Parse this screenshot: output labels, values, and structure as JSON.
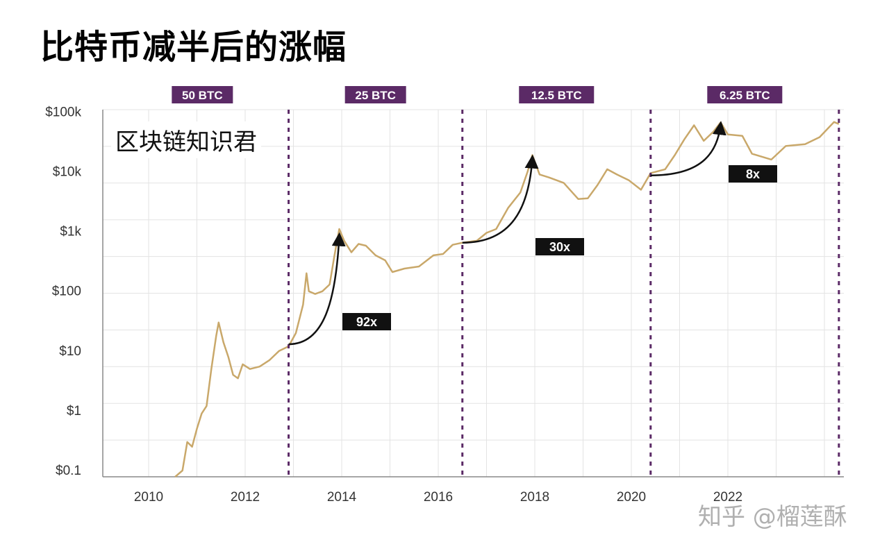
{
  "title": "比特币减半后的涨幅",
  "brand_label": "区块链知识君",
  "watermark": "知乎 @榴莲酥",
  "chart_data": {
    "type": "line",
    "title": "比特币减半后的涨幅",
    "y_scale": "log",
    "ylim": [
      0.05,
      100000
    ],
    "xlim": [
      2009.0,
      2024.4
    ],
    "y_ticks": [
      {
        "value": 100000,
        "label": "$100k"
      },
      {
        "value": 10000,
        "label": "$10k"
      },
      {
        "value": 1000,
        "label": "$1k"
      },
      {
        "value": 100,
        "label": "$100"
      },
      {
        "value": 10,
        "label": "$10"
      },
      {
        "value": 1,
        "label": "$1"
      },
      {
        "value": 0.1,
        "label": "$0.1"
      }
    ],
    "x_ticks": [
      2010,
      2012,
      2014,
      2016,
      2018,
      2020,
      2022
    ],
    "grid": true,
    "line_color": "#c9a86a",
    "halving_color": "#5b2a66",
    "halvings": [
      {
        "x": 2012.9,
        "reward_label": "50 BTC"
      },
      {
        "x": 2016.5,
        "reward_label": "25 BTC"
      },
      {
        "x": 2020.4,
        "reward_label": "12.5 BTC"
      },
      {
        "x": 2024.3,
        "reward_label": "6.25 BTC"
      }
    ],
    "annotations": [
      {
        "label": "92x",
        "from": [
          2012.9,
          13
        ],
        "to": [
          2013.95,
          850
        ]
      },
      {
        "label": "30x",
        "from": [
          2016.5,
          650
        ],
        "to": [
          2017.95,
          17000
        ]
      },
      {
        "label": "8x",
        "from": [
          2020.4,
          8700
        ],
        "to": [
          2021.85,
          62000
        ]
      }
    ],
    "series": [
      {
        "x": [
          2010.55,
          2010.7,
          2010.8,
          2010.9,
          2011.0,
          2011.1,
          2011.2,
          2011.3,
          2011.4,
          2011.45,
          2011.55,
          2011.65,
          2011.75,
          2011.85,
          2011.95,
          2012.1,
          2012.3,
          2012.5,
          2012.7,
          2012.9,
          2013.05,
          2013.2,
          2013.27,
          2013.32,
          2013.45,
          2013.6,
          2013.75,
          2013.85,
          2013.95,
          2014.05,
          2014.2,
          2014.35,
          2014.5,
          2014.7,
          2014.9,
          2015.05,
          2015.3,
          2015.6,
          2015.9,
          2016.1,
          2016.3,
          2016.5,
          2016.8,
          2017.0,
          2017.2,
          2017.45,
          2017.7,
          2017.85,
          2017.95,
          2018.1,
          2018.3,
          2018.6,
          2018.9,
          2019.1,
          2019.3,
          2019.5,
          2019.7,
          2019.95,
          2020.2,
          2020.4,
          2020.7,
          2020.9,
          2021.1,
          2021.3,
          2021.5,
          2021.7,
          2021.85,
          2022.0,
          2022.3,
          2022.5,
          2022.9,
          2023.2,
          2023.6,
          2023.9,
          2024.2,
          2024.3
        ],
        "y": [
          0.06,
          0.1,
          0.3,
          0.25,
          0.5,
          0.9,
          1.2,
          5,
          18,
          30,
          14,
          8,
          4,
          3.5,
          6,
          5,
          5.5,
          7,
          10,
          12,
          20,
          60,
          200,
          100,
          90,
          100,
          130,
          400,
          1100,
          700,
          450,
          620,
          580,
          400,
          330,
          210,
          240,
          260,
          400,
          420,
          600,
          650,
          700,
          950,
          1100,
          2500,
          4500,
          10000,
          19000,
          9000,
          8000,
          6500,
          3500,
          3600,
          6000,
          11000,
          9000,
          7200,
          5000,
          9500,
          11000,
          19000,
          35000,
          60000,
          33000,
          47000,
          67000,
          42000,
          40000,
          20000,
          16000,
          27000,
          29000,
          38000,
          68000,
          63000
        ]
      }
    ]
  }
}
